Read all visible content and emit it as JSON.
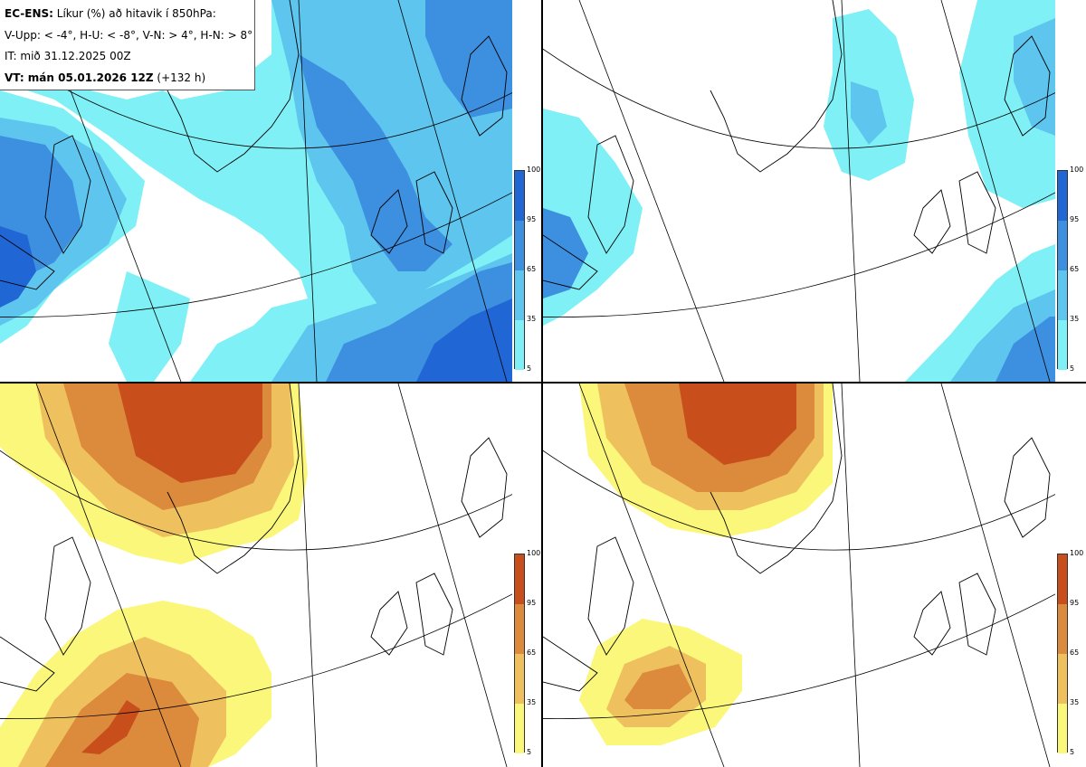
{
  "header": {
    "model": "EC-ENS:",
    "title": " Líkur (%) að hitavik í 850hPa:",
    "thresholds": "V-Upp: < -4°, H-U: < -8°, V-N: > 4°, H-N: > 8°",
    "init_time": "IT: mið 31.12.2025 00Z",
    "valid_label": "VT: mán 05.01.2026 12Z",
    "lead": " (+132 h)"
  },
  "colorbars": {
    "levels": [
      "100",
      "95",
      "65",
      "35",
      "5"
    ],
    "cold_colors": [
      "#2166d5",
      "#3d8fe0",
      "#5ec5ee",
      "#7ff0f5"
    ],
    "warm_colors": [
      "#c84f1c",
      "#dc8a3c",
      "#efc05e",
      "#fbf77a"
    ]
  },
  "panels": [
    {
      "name": "upper-left-cold-anomaly-4",
      "scheme": "cold"
    },
    {
      "name": "upper-right-cold-anomaly-8",
      "scheme": "cold"
    },
    {
      "name": "lower-left-warm-anomaly-4",
      "scheme": "warm"
    },
    {
      "name": "lower-right-warm-anomaly-8",
      "scheme": "warm"
    }
  ]
}
